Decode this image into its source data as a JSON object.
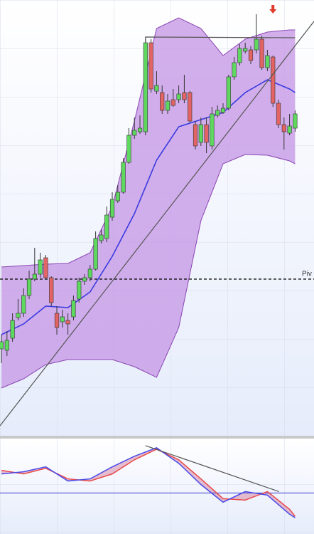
{
  "chart_data": [
    {
      "type": "candlestick",
      "xlim": [
        -0.26,
        56.41
      ],
      "ylim": [
        0,
        612
      ],
      "up_color": "#5ed85e",
      "down_color": "#e26464",
      "candles": {
        "open": [
          122,
          120,
          137,
          166,
          172,
          197,
          220,
          227,
          250,
          222,
          172,
          160,
          162,
          167,
          192,
          217,
          222,
          234,
          274,
          277,
          307,
          330,
          342,
          384,
          422,
          427,
          427,
          552,
          484,
          482,
          457,
          472,
          472,
          482,
          482,
          437,
          412,
          437,
          407,
          450,
          454,
          460,
          504,
          524,
          540,
          542,
          542,
          557,
          517,
          532,
          467,
          437,
          425,
          432
        ],
        "high": [
          142,
          147,
          172,
          192,
          207,
          232,
          264,
          257,
          254,
          224,
          182,
          177,
          172,
          197,
          222,
          227,
          240,
          287,
          290,
          322,
          342,
          352,
          390,
          432,
          447,
          450,
          557,
          557,
          512,
          492,
          480,
          487,
          492,
          507,
          484,
          442,
          447,
          447,
          462,
          464,
          467,
          507,
          532,
          550,
          552,
          547,
          592,
          562,
          542,
          534,
          472,
          447,
          452,
          457
        ],
        "low": [
          102,
          112,
          132,
          162,
          167,
          192,
          217,
          222,
          220,
          182,
          142,
          152,
          142,
          162,
          187,
          212,
          217,
          232,
          270,
          272,
          302,
          327,
          340,
          382,
          417,
          424,
          422,
          482,
          480,
          452,
          452,
          462,
          467,
          467,
          440,
          402,
          407,
          397,
          402,
          447,
          452,
          457,
          500,
          520,
          537,
          522,
          537,
          514,
          512,
          462,
          432,
          402,
          422,
          427
        ],
        "close": [
          132,
          134,
          162,
          172,
          197,
          220,
          227,
          247,
          222,
          187,
          152,
          167,
          157,
          190,
          217,
          222,
          234,
          277,
          282,
          310,
          332,
          342,
          384,
          422,
          429,
          432,
          552,
          487,
          492,
          457,
          470,
          464,
          480,
          472,
          442,
          407,
          437,
          412,
          452,
          457,
          460,
          504,
          524,
          544,
          544,
          527,
          557,
          517,
          534,
          467,
          437,
          427,
          435,
          452
        ]
      },
      "bands": {
        "x": [
          0,
          4,
          8,
          12,
          16,
          20,
          24,
          28,
          32,
          36,
          40,
          44,
          48,
          52,
          53
        ],
        "upper": [
          237,
          239,
          241,
          242,
          257,
          322,
          442,
          572,
          587,
          572,
          534,
          557,
          567,
          570,
          570
        ],
        "middle": [
          142,
          157,
          182,
          180,
          202,
          252,
          312,
          387,
          434,
          444,
          454,
          482,
          500,
          487,
          482
        ],
        "lower": [
          67,
          80,
          100,
          107,
          107,
          107,
          97,
          82,
          152,
          302,
          382,
          395,
          394,
          386,
          382
        ],
        "fill": "#c79be6",
        "stroke": "#8b44b3",
        "middle_color": "#3b3be0"
      },
      "pivot": {
        "value": 220,
        "label": "Piv"
      },
      "trendlines": [
        {
          "x": [
            -0.26,
            56.41
          ],
          "values": [
            14,
            582
          ],
          "color": "#555555"
        },
        {
          "x": [
            26,
            26,
            53
          ],
          "values": [
            552,
            560,
            559
          ],
          "color": "#555555"
        }
      ],
      "arrow": {
        "x": 49,
        "value": 597,
        "color": "#e03a2a"
      }
    },
    {
      "type": "line",
      "xlim": [
        -0.26,
        56.41
      ],
      "ylim": [
        -58,
        77
      ],
      "x": [
        0,
        4,
        8,
        12,
        16,
        20,
        24,
        28,
        32,
        36,
        40,
        44,
        48,
        52,
        53
      ],
      "series": [
        {
          "color": "#e84a4a",
          "values": [
            32,
            27,
            35,
            20,
            17,
            27,
            47,
            62,
            47,
            20,
            -8,
            -10,
            2,
            -23,
            -33
          ]
        },
        {
          "color": "#4a4ae8",
          "values": [
            27,
            30,
            37,
            17,
            20,
            37,
            52,
            64,
            42,
            12,
            -13,
            2,
            -3,
            -30,
            -35
          ]
        }
      ],
      "hline": 0,
      "hline_color": "#3a3ad0",
      "trendlines": [
        {
          "x": [
            26,
            50.1
          ],
          "values": [
            67,
            2
          ],
          "color": "#555555"
        }
      ]
    }
  ]
}
